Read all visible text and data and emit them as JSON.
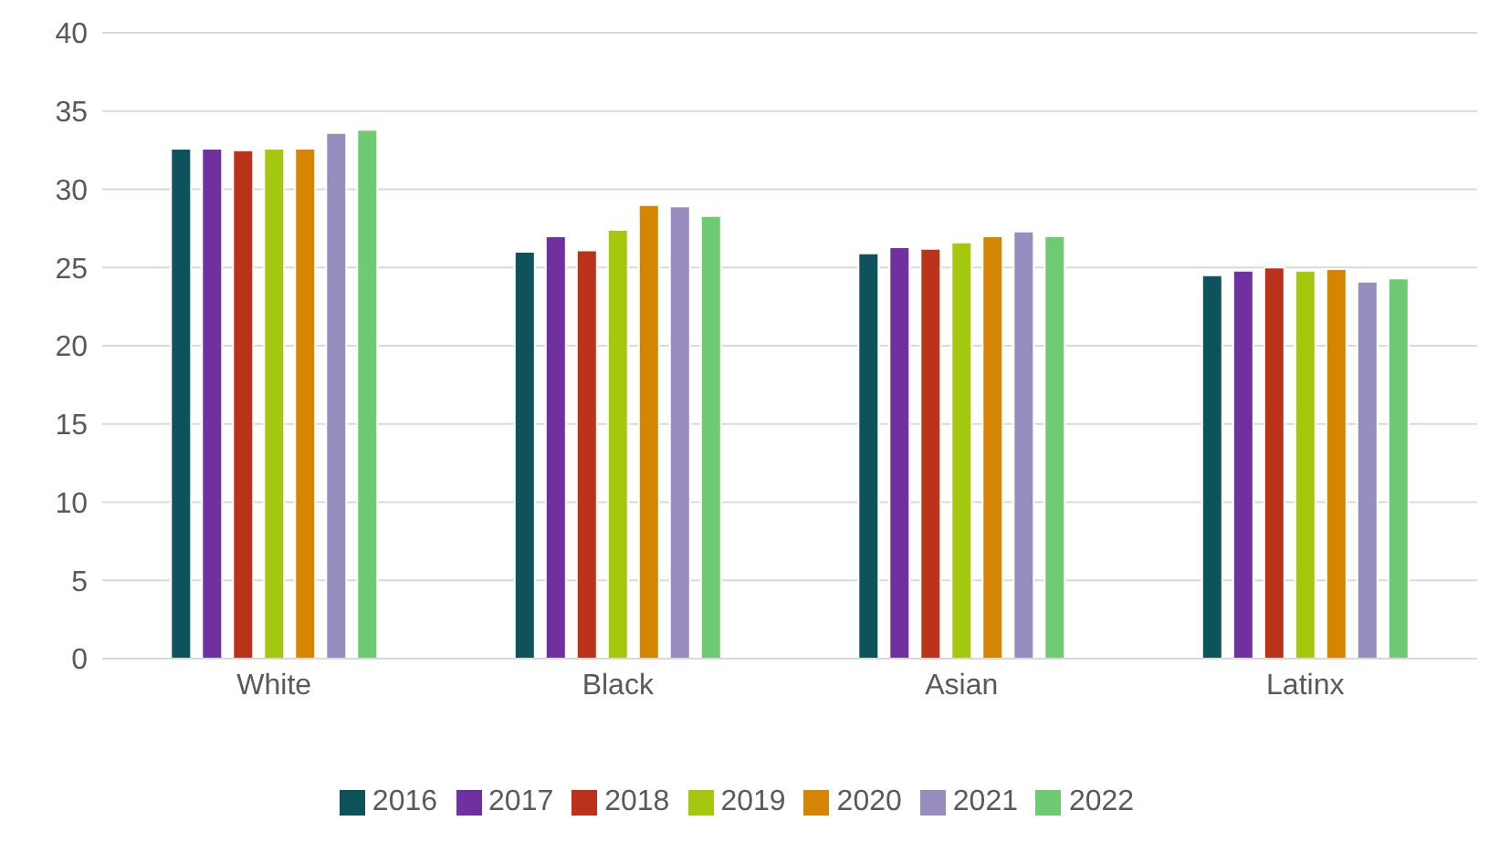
{
  "chart_data": {
    "type": "bar",
    "categories": [
      "White",
      "Black",
      "Asian",
      "Latinx"
    ],
    "series": [
      {
        "name": "2016",
        "color": "#0e525c",
        "values": [
          32.6,
          26.0,
          25.9,
          24.5
        ]
      },
      {
        "name": "2017",
        "color": "#7030a0",
        "values": [
          32.6,
          27.0,
          26.3,
          24.8
        ]
      },
      {
        "name": "2018",
        "color": "#bb321a",
        "values": [
          32.5,
          26.1,
          26.2,
          25.0
        ]
      },
      {
        "name": "2019",
        "color": "#a5c80f",
        "values": [
          32.6,
          27.4,
          26.6,
          24.8
        ]
      },
      {
        "name": "2020",
        "color": "#d58500",
        "values": [
          32.6,
          29.0,
          27.0,
          24.9
        ]
      },
      {
        "name": "2021",
        "color": "#978dbf",
        "values": [
          33.6,
          28.9,
          27.3,
          24.1
        ]
      },
      {
        "name": "2022",
        "color": "#6ecb74",
        "values": [
          33.8,
          28.3,
          27.0,
          24.3
        ]
      }
    ],
    "ylim": [
      0,
      40
    ],
    "yticks": [
      0,
      5,
      10,
      15,
      20,
      25,
      30,
      35,
      40
    ],
    "grid": "y",
    "legend": "bottom"
  }
}
